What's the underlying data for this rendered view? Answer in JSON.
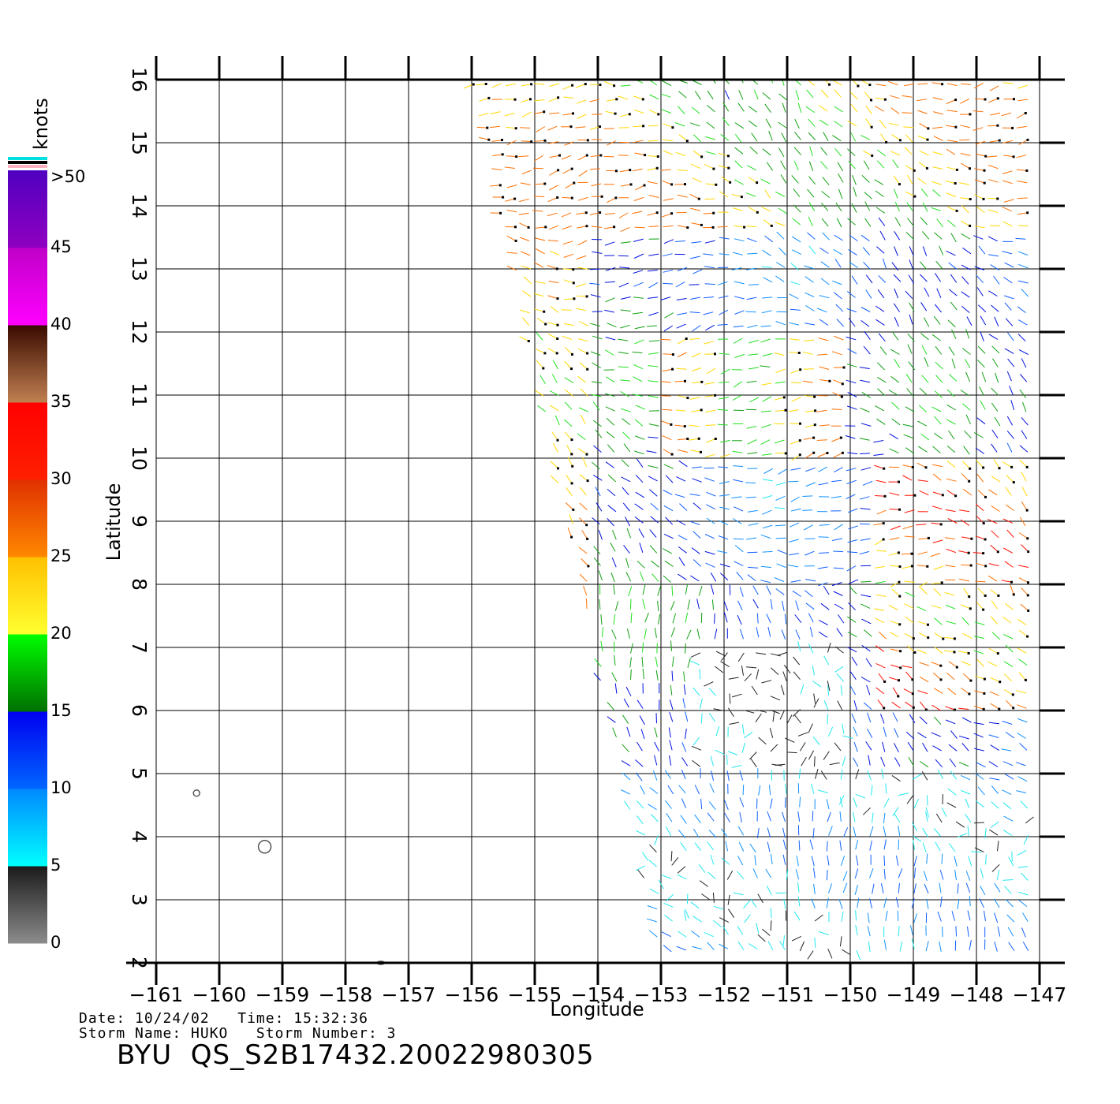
{
  "colorbar": {
    "title": "knots",
    "bands": [
      {
        "from": 0,
        "to": 5,
        "colors": [
          "#8c8c8c",
          "#1a1a1a"
        ]
      },
      {
        "from": 5,
        "to": 10,
        "colors": [
          "#00ffff",
          "#0088ff"
        ]
      },
      {
        "from": 10,
        "to": 15,
        "colors": [
          "#0066ff",
          "#0000f0"
        ]
      },
      {
        "from": 15,
        "to": 20,
        "colors": [
          "#007000",
          "#00ff00"
        ]
      },
      {
        "from": 20,
        "to": 25,
        "colors": [
          "#ffff30",
          "#ffc000"
        ]
      },
      {
        "from": 25,
        "to": 30,
        "colors": [
          "#ff8800",
          "#e03000"
        ]
      },
      {
        "from": 30,
        "to": 35,
        "colors": [
          "#ff2000",
          "#ff0000"
        ]
      },
      {
        "from": 35,
        "to": 40,
        "colors": [
          "#c08050",
          "#3a0a00"
        ]
      },
      {
        "from": 40,
        "to": 45,
        "colors": [
          "#ff00ff",
          "#c000c8"
        ]
      },
      {
        "from": 45,
        "to": 50,
        "colors": [
          "#9000c0",
          "#5000c0"
        ]
      }
    ],
    "labels": [
      "0",
      "5",
      "10",
      "15",
      "20",
      "25",
      "30",
      "35",
      "40",
      "45",
      ">50"
    ],
    "overflow_colors": [
      "#00e0e0",
      "#000000",
      "#ffb0c0"
    ]
  },
  "map": {
    "lon_range": [
      -161,
      -147
    ],
    "lat_range": [
      2,
      16
    ],
    "lon_ticks": [
      "−161",
      "−160",
      "−159",
      "−158",
      "−157",
      "−156",
      "−155",
      "−154",
      "−153",
      "−152",
      "−151",
      "−150",
      "−149",
      "−148",
      "−147"
    ],
    "lat_ticks": [
      "2",
      "3",
      "4",
      "5",
      "6",
      "7",
      "8",
      "9",
      "10",
      "11",
      "12",
      "13",
      "14",
      "15",
      "16"
    ],
    "xlabel": "Longitude",
    "ylabel": "Latitude",
    "grid": true,
    "swath_corners": [
      [
        -156.0,
        16.0
      ],
      [
        -147.0,
        16.0
      ],
      [
        -147.0,
        2.0
      ],
      [
        -153.0,
        2.0
      ]
    ],
    "islands": [
      {
        "lon": -160.36,
        "lat": 4.69,
        "rx": 0.05,
        "ry": 0.05
      },
      {
        "lon": -159.28,
        "lat": 3.84,
        "rx": 0.1,
        "ry": 0.1
      },
      {
        "lon": -157.44,
        "lat": 2.0,
        "rx": 0.06,
        "ry": 0.02
      }
    ]
  },
  "meta": {
    "date_line": "Date: 10/24/02   Time: 15:32:36",
    "storm_line": "Storm Name: HUKO   Storm Number: 3",
    "product": "BYU  QS_S2B17432.20022980305"
  }
}
